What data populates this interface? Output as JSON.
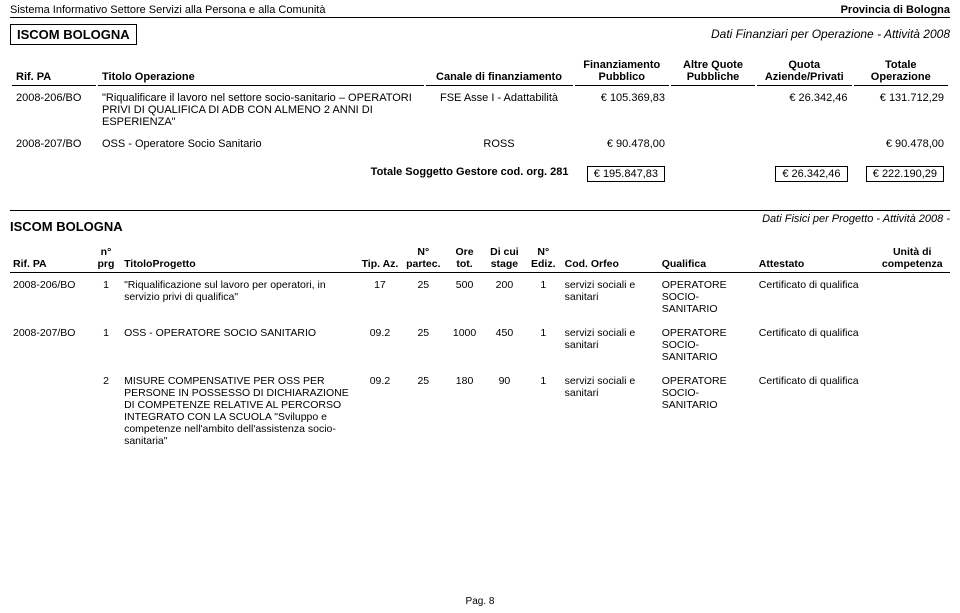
{
  "header": {
    "left": "Sistema Informativo Settore Servizi alla Persona e alla Comunità",
    "right": "Provincia di Bologna"
  },
  "org": "ISCOM BOLOGNA",
  "section1_title": "Dati Finanziari per Operazione - Attività 2008",
  "tbl1": {
    "cols": {
      "rif": "Rif. PA",
      "titolo": "Titolo Operazione",
      "canale": "Canale di finanziamento",
      "finpub": "Finanziamento Pubblico",
      "altre": "Altre Quote Pubbliche",
      "quota": "Quota Aziende/Privati",
      "totale": "Totale Operazione"
    },
    "rows": [
      {
        "rif": "2008-206/BO",
        "titolo": "\"Riqualificare il lavoro nel settore socio-sanitario – OPERATORI PRIVI DI QUALIFICA DI ADB CON ALMENO 2 ANNI DI ESPERIENZA\"",
        "canale": "FSE Asse I - Adattabilità",
        "finpub": "€ 105.369,83",
        "altre": "",
        "quota": "€ 26.342,46",
        "totale": "€ 131.712,29"
      },
      {
        "rif": "2008-207/BO",
        "titolo": "OSS - Operatore Socio Sanitario",
        "canale": "ROSS",
        "finpub": "€ 90.478,00",
        "altre": "",
        "quota": "",
        "totale": "€ 90.478,00"
      }
    ],
    "totals": {
      "label": "Totale Soggetto Gestore cod. org. 281",
      "finpub": "€ 195.847,83",
      "quota": "€ 26.342,46",
      "totale": "€ 222.190,29"
    }
  },
  "section2_title": "Dati Fisici per Progetto - Attività 2008 -",
  "tbl2": {
    "cols": {
      "rif": "Rif. PA",
      "nprg": "n° prg",
      "titolo": "TitoloProgetto",
      "tipaz": "Tip. Az.",
      "npartec": "N° partec.",
      "oretot": "Ore tot.",
      "dicui": "Di cui stage",
      "nediz": "N° Ediz.",
      "cod": "Cod. Orfeo",
      "qualifica": "Qualifica",
      "attestato": "Attestato",
      "unita": "Unità di competenza"
    },
    "rows": [
      {
        "rif": "2008-206/BO",
        "nprg": "1",
        "titolo": "\"Riqualificazione sul lavoro per operatori, in servizio privi di qualifica\"",
        "tipaz": "17",
        "npartec": "25",
        "oretot": "500",
        "dicui": "200",
        "nediz": "1",
        "cod": "servizi sociali e sanitari",
        "qualifica": "OPERATORE SOCIO-SANITARIO",
        "attestato": "Certificato di qualifica",
        "unita": ""
      },
      {
        "rif": "2008-207/BO",
        "nprg": "1",
        "titolo": "OSS - OPERATORE SOCIO SANITARIO",
        "tipaz": "09.2",
        "npartec": "25",
        "oretot": "1000",
        "dicui": "450",
        "nediz": "1",
        "cod": "servizi sociali e sanitari",
        "qualifica": "OPERATORE SOCIO-SANITARIO",
        "attestato": "Certificato di qualifica",
        "unita": ""
      },
      {
        "rif": "",
        "nprg": "2",
        "titolo": "MISURE COMPENSATIVE PER OSS PER PERSONE IN POSSESSO DI DICHIARAZIONE DI COMPETENZE RELATIVE AL PERCORSO INTEGRATO CON LA SCUOLA \"Sviluppo e competenze nell'ambito dell'assistenza socio-sanitaria\"",
        "tipaz": "09.2",
        "npartec": "25",
        "oretot": "180",
        "dicui": "90",
        "nediz": "1",
        "cod": "servizi sociali e sanitari",
        "qualifica": "OPERATORE SOCIO-SANITARIO",
        "attestato": "Certificato di qualifica",
        "unita": ""
      }
    ]
  },
  "footer": "Pag. 8"
}
